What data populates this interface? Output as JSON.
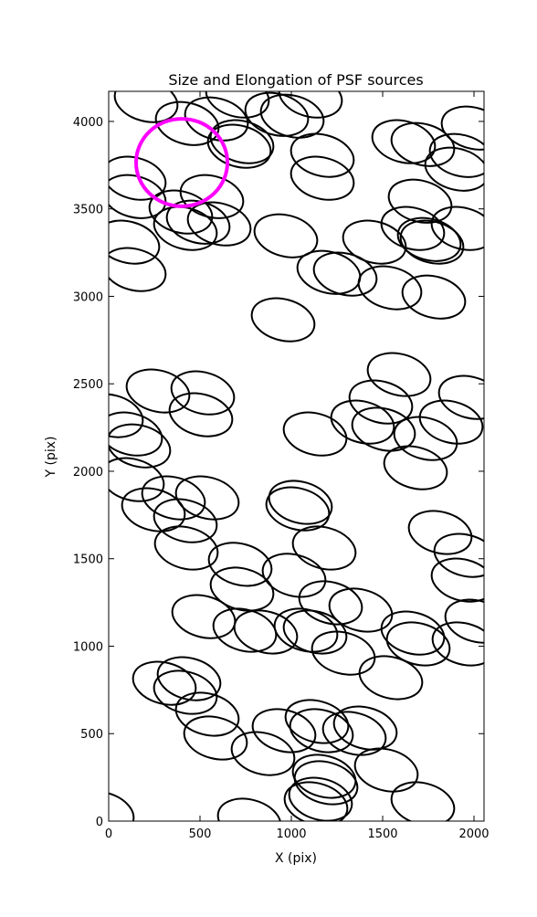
{
  "chart_data": {
    "type": "ellipses",
    "title": "Size and Elongation of PSF sources",
    "x_label": "X (pix)",
    "y_label": "Y (pix)",
    "xlim": [
      0,
      2055
    ],
    "ylim": [
      0,
      4172
    ],
    "xticks": [
      0,
      500,
      1000,
      1500,
      2000
    ],
    "yticks": [
      0,
      500,
      1000,
      1500,
      2000,
      2500,
      3000,
      3500,
      4000
    ],
    "ellipse_width": 350,
    "ellipse_height": 235,
    "ellipse_angle": 15,
    "color": "#000000",
    "x": [
      -35,
      770,
      205,
      430,
      590,
      705,
      920,
      1005,
      1105,
      715,
      730,
      1170,
      1170,
      140,
      140,
      565,
      395,
      420,
      490,
      605,
      105,
      140,
      970,
      1455,
      1615,
      1720,
      1905,
      1995,
      1930,
      1705,
      1665,
      1755,
      1770,
      1940,
      1205,
      1295,
      1540,
      1780,
      955,
      1590,
      15,
      120,
      165,
      270,
      515,
      505,
      1130,
      1390,
      1490,
      1505,
      1735,
      1875,
      1980,
      1680,
      130,
      355,
      245,
      540,
      420,
      1050,
      1035,
      1815,
      1180,
      425,
      720,
      730,
      1015,
      1955,
      1940,
      2015,
      1945,
      1665,
      1695,
      1215,
      1380,
      520,
      745,
      860,
      1080,
      1130,
      1285,
      1545,
      305,
      440,
      420,
      540,
      585,
      845,
      960,
      1140,
      1165,
      1345,
      1405,
      1520,
      1180,
      1190,
      1135,
      1160,
      1720
    ],
    "y": [
      47,
      5,
      4119,
      3988,
      4014,
      4145,
      4040,
      4030,
      4145,
      3858,
      3884,
      3806,
      3675,
      3675,
      3570,
      3570,
      3482,
      3388,
      3424,
      3414,
      3310,
      3153,
      3346,
      3310,
      3884,
      3868,
      3727,
      3962,
      3805,
      3544,
      3388,
      3325,
      3310,
      3388,
      3137,
      3127,
      3049,
      2996,
      2866,
      2553,
      2318,
      2213,
      2145,
      2459,
      2448,
      2323,
      2213,
      2281,
      2396,
      2240,
      2187,
      2281,
      2422,
      2020,
      1952,
      1848,
      1780,
      1848,
      1717,
      1822,
      1785,
      1650,
      1561,
      1561,
      1468,
      1326,
      1405,
      1519,
      1378,
      1143,
      1013,
      1075,
      1013,
      1248,
      1206,
      1169,
      1091,
      1081,
      1091,
      1081,
      960,
      820,
      788,
      814,
      736,
      611,
      475,
      386,
      517,
      569,
      517,
      501,
      532,
      292,
      256,
      219,
      99,
      125,
      99
    ],
    "highlight": {
      "x": 400,
      "y": 3765,
      "radius": 250,
      "color": "#ff00ff"
    }
  }
}
